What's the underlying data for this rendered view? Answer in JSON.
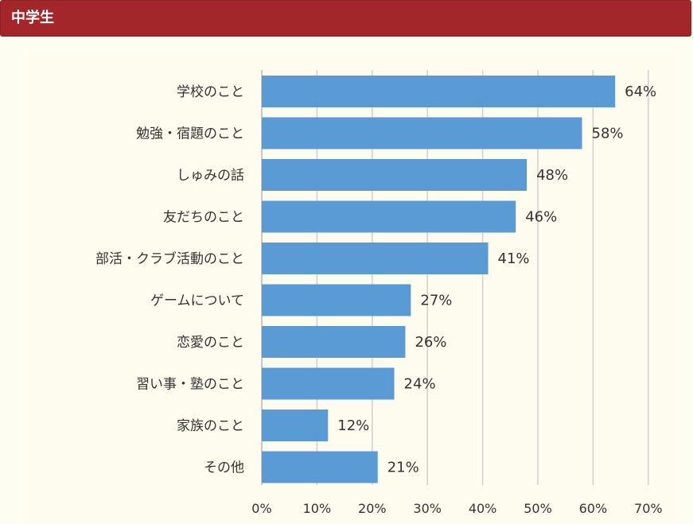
{
  "header": {
    "title": "中学生"
  },
  "chart_data": {
    "type": "bar",
    "orientation": "horizontal",
    "title": "",
    "xlabel": "",
    "ylabel": "",
    "categories": [
      "学校のこと",
      "勉強・宿題のこと",
      "しゅみの話",
      "友だちのこと",
      "部活・クラブ活動のこと",
      "ゲームについて",
      "恋愛のこと",
      "習い事・塾のこと",
      "家族のこと",
      "その他"
    ],
    "values": [
      64,
      58,
      48,
      46,
      41,
      27,
      26,
      24,
      12,
      21
    ],
    "value_labels": [
      "64%",
      "58%",
      "48%",
      "46%",
      "41%",
      "27%",
      "26%",
      "24%",
      "12%",
      "21%"
    ],
    "xlim": [
      0,
      70
    ],
    "ticks": [
      0,
      10,
      20,
      30,
      40,
      50,
      60,
      70
    ],
    "tick_labels": [
      "0%",
      "10%",
      "20%",
      "30%",
      "40%",
      "50%",
      "60%",
      "70%"
    ],
    "bar_color": "#5b9bd5",
    "grid": true,
    "legend": "none"
  }
}
